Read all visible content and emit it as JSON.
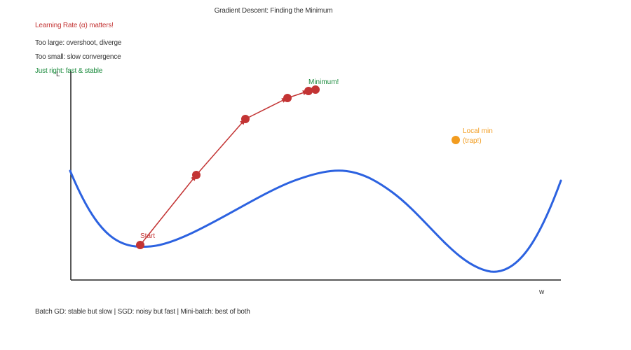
{
  "title": "Gradient Descent: Finding the Minimum",
  "learning_rate_heading": "Learning Rate (α) matters!",
  "tips": {
    "too_large": "Too large: overshoot, diverge",
    "too_small": "Too small: slow convergence",
    "just_right": "Just right: fast & stable"
  },
  "axes": {
    "y_label": "L",
    "x_label": "w"
  },
  "labels": {
    "start": "Start",
    "minimum": "Minimum!",
    "local_min_line1": "Local min",
    "local_min_line2": "(trap!)"
  },
  "footer": "Batch GD: stable but slow | SGD: noisy but fast | Mini-batch: best of both",
  "colors": {
    "curve": "#2c62e0",
    "descent": "#c33434",
    "local_min": "#f29c1f",
    "good": "#1a8a3c",
    "text": "#333333"
  }
}
